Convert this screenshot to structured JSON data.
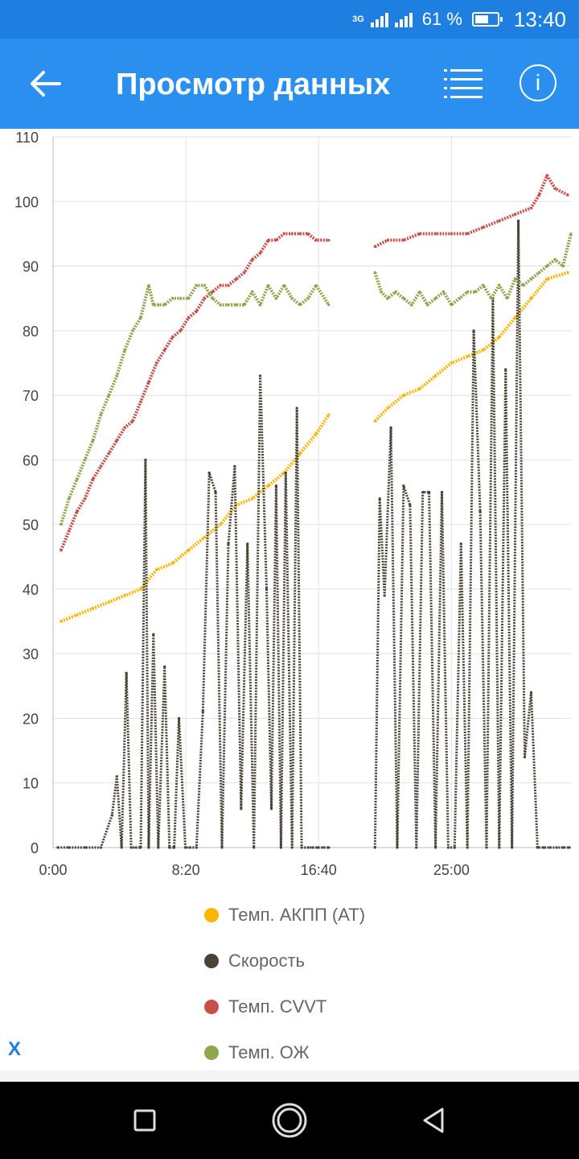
{
  "status_bar": {
    "network": "3G",
    "battery_percent": "61 %",
    "battery_level": 0.61,
    "time": "13:40"
  },
  "app_bar": {
    "title": "Просмотр данных",
    "back_icon": "arrow-left-icon",
    "list_icon": "list-icon",
    "info_icon": "info-icon",
    "info_label": "i"
  },
  "chart_data": {
    "type": "line",
    "y_ticks": [
      "110",
      "100",
      "90",
      "80",
      "70",
      "60",
      "50",
      "40",
      "30",
      "20",
      "10",
      "0"
    ],
    "x_ticks": [
      "0:00",
      "8:20",
      "16:40",
      "25:00"
    ],
    "ylim": [
      0,
      110
    ],
    "xlim_minutes": [
      0,
      32.5
    ],
    "x_tick_minutes": [
      0,
      8.333,
      16.667,
      25
    ],
    "grid": true,
    "series": [
      {
        "name": "Темп. АКПП (AT)",
        "color": "#ffb400",
        "x": [
          0.5,
          1.5,
          2.5,
          3.5,
          4.5,
          5.5,
          6.5,
          7.5,
          8.5,
          9.5,
          10.5,
          11.5,
          12.5,
          13.5,
          14.5,
          15.5,
          16.5,
          17.3,
          null,
          20.2,
          21,
          22,
          23,
          24,
          25,
          26,
          27,
          28,
          29,
          30,
          31,
          32.3
        ],
        "y": [
          35,
          36,
          37,
          38,
          39,
          40,
          43,
          44,
          46,
          48,
          50,
          53,
          54,
          56,
          58,
          61,
          64,
          67,
          null,
          66,
          68,
          70,
          71,
          73,
          75,
          76,
          77,
          79,
          82,
          85,
          88,
          89
        ]
      },
      {
        "name": "Скорость",
        "color": "#4a4236",
        "x": [
          0.3,
          1,
          2,
          3,
          3.7,
          4,
          4.3,
          4.6,
          4.9,
          5.2,
          5.5,
          5.8,
          6,
          6.3,
          6.6,
          7,
          7.3,
          7.6,
          7.9,
          8.3,
          8.6,
          9,
          9.4,
          9.8,
          10.2,
          10.6,
          11,
          11.4,
          11.8,
          12.2,
          12.6,
          13,
          13.4,
          13.7,
          14,
          14.3,
          14.6,
          15,
          15.3,
          15.6,
          16,
          16.3,
          16.6,
          17,
          17.3,
          null,
          20.2,
          20.5,
          20.8,
          21.2,
          21.6,
          22,
          22.4,
          22.8,
          23.2,
          23.6,
          24,
          24.4,
          24.8,
          25.2,
          25.6,
          26,
          26.4,
          26.8,
          27.2,
          27.6,
          28,
          28.4,
          28.8,
          29.2,
          29.6,
          30,
          30.4,
          30.8,
          31.2,
          31.6,
          32,
          32.4
        ],
        "y": [
          0,
          0,
          0,
          0,
          5,
          11,
          0,
          27,
          0,
          0,
          0,
          60,
          0,
          33,
          0,
          28,
          0,
          0,
          20,
          0,
          0,
          0,
          21,
          58,
          55,
          0,
          47,
          59,
          6,
          47,
          0,
          73,
          40,
          6,
          56,
          0,
          58,
          0,
          68,
          0,
          0,
          0,
          0,
          0,
          0,
          null,
          0,
          54,
          39,
          65,
          0,
          56,
          53,
          0,
          55,
          55,
          0,
          55,
          0,
          0,
          47,
          0,
          80,
          52,
          0,
          85,
          0,
          74,
          0,
          97,
          14,
          24,
          0,
          0,
          0,
          0,
          0,
          0
        ]
      },
      {
        "name": "Темп. CVVT",
        "color": "#c8504a",
        "x": [
          0.5,
          1,
          1.5,
          2,
          2.5,
          3,
          3.5,
          4,
          4.5,
          5,
          5.5,
          6,
          6.5,
          7,
          7.5,
          8,
          8.5,
          9,
          9.5,
          10,
          10.5,
          11,
          11.5,
          12,
          12.5,
          13,
          13.5,
          14,
          14.5,
          15,
          15.5,
          16,
          16.5,
          17.3,
          null,
          20.2,
          21,
          22,
          23,
          24,
          25,
          26,
          27,
          28,
          29,
          30,
          30.5,
          31,
          31.5,
          32.3
        ],
        "y": [
          46,
          49,
          52,
          54,
          57,
          59,
          61,
          63,
          65,
          66,
          69,
          72,
          75,
          77,
          79,
          80,
          82,
          83,
          85,
          86,
          87,
          87,
          88,
          89,
          91,
          92,
          94,
          94,
          95,
          95,
          95,
          95,
          94,
          94,
          null,
          93,
          94,
          94,
          95,
          95,
          95,
          95,
          96,
          97,
          98,
          99,
          101,
          104,
          102,
          101
        ]
      },
      {
        "name": "Темп. ОЖ",
        "color": "#8fa64e",
        "x": [
          0.5,
          1,
          1.5,
          2,
          2.5,
          3,
          3.5,
          4,
          4.5,
          5,
          5.5,
          6,
          6.3,
          6.6,
          7,
          7.5,
          8,
          8.5,
          9,
          9.5,
          10,
          10.5,
          11,
          11.5,
          12,
          12.5,
          13,
          13.5,
          14,
          14.5,
          15,
          15.5,
          16,
          16.5,
          17.3,
          null,
          20.2,
          20.6,
          21,
          21.5,
          22,
          22.5,
          23,
          23.5,
          24,
          24.5,
          25,
          25.5,
          26,
          26.5,
          27,
          27.5,
          28,
          28.5,
          29,
          29.5,
          30,
          30.5,
          31,
          31.5,
          32,
          32.5
        ],
        "y": [
          50,
          54,
          57,
          60,
          63,
          67,
          70,
          73,
          77,
          80,
          82,
          87,
          84,
          84,
          84,
          85,
          85,
          85,
          87,
          87,
          85,
          84,
          84,
          84,
          84,
          86,
          84,
          87,
          85,
          87,
          85,
          84,
          85,
          87,
          84,
          null,
          89,
          86,
          85,
          86,
          85,
          84,
          86,
          84,
          85,
          86,
          84,
          85,
          86,
          86,
          87,
          85,
          87,
          85,
          88,
          87,
          88,
          89,
          90,
          91,
          90,
          95
        ]
      }
    ]
  },
  "legend": [
    {
      "label": "Темп. АКПП (AT)",
      "color": "#ffb400"
    },
    {
      "label": "Скорость",
      "color": "#4a4236"
    },
    {
      "label": "Темп. CVVT",
      "color": "#c8504a"
    },
    {
      "label": "Темп. ОЖ",
      "color": "#8fa64e"
    }
  ],
  "close_label": "X",
  "nav_bar": {
    "recent_icon": "square-icon",
    "home_icon": "circle-home-icon",
    "back_icon": "triangle-back-icon"
  }
}
